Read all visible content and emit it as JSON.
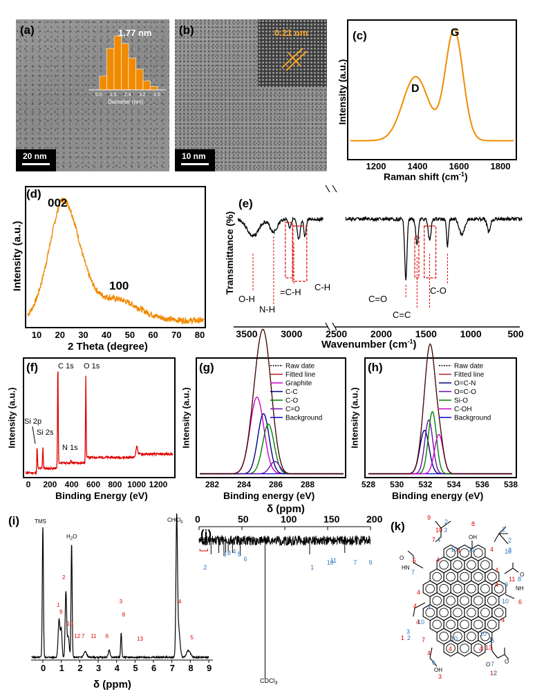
{
  "panels": {
    "a": {
      "label": "(a)",
      "size_label": "1.77 nm",
      "scale": "20 nm",
      "xlabel": "Diameter (nm)",
      "ticks": [
        "0.8",
        "1.6",
        "2.4",
        "3.2",
        "4.0"
      ]
    },
    "b": {
      "label": "(b)",
      "lattice": "0.21 nm",
      "scale": "10 nm"
    },
    "c": {
      "label": "(c)",
      "peak_d": "D",
      "peak_g": "G",
      "ylabel": "Intensity (a.u.)",
      "xlabel_main": "Raman shift (cm",
      "xlabel_sup": "-1",
      "xlabel_end": ")",
      "ticks": [
        "1200",
        "1400",
        "1600",
        "1800"
      ]
    },
    "d": {
      "label": "(d)",
      "peak1": "002",
      "peak2": "100",
      "ylabel": "Intensity (a.u.)",
      "xlabel": "2 Theta (degree)",
      "ticks": [
        "10",
        "20",
        "30",
        "40",
        "50",
        "60",
        "70",
        "80"
      ]
    },
    "e": {
      "label": "(e)",
      "ylabel": "Transmittance (%)",
      "xlabel_main": "Wavenumber (cm",
      "xlabel_sup": "-1",
      "xlabel_end": ")",
      "ticks": [
        "3500",
        "3000",
        "2500",
        "2000",
        "1500",
        "1000",
        "500"
      ],
      "ann": [
        "O-H",
        "N-H",
        "=C-H",
        "C-H",
        "C=O",
        "C=C",
        "C-O"
      ]
    },
    "f": {
      "label": "(f)",
      "ylabel": "Intensity (a.u.)",
      "xlabel": "Binding Energy (eV)",
      "ticks": [
        "0",
        "200",
        "400",
        "600",
        "800",
        "1000",
        "1200"
      ],
      "peaks": [
        "C 1s",
        "O 1s",
        "Si 2p",
        "Si 2s",
        "N 1s"
      ]
    },
    "g": {
      "label": "(g)",
      "ylabel": "Intensity (a.u.)",
      "xlabel": "Binding energy (eV)",
      "ticks": [
        "282",
        "284",
        "286",
        "288"
      ],
      "legend": [
        "Raw date",
        "Fitted line",
        "Graphite",
        "C-C",
        "C-O",
        "C=O",
        "Background"
      ]
    },
    "h": {
      "label": "(h)",
      "ylabel": "Intensity (a.u.)",
      "xlabel": "Binding energy (eV)",
      "ticks": [
        "528",
        "530",
        "532",
        "534",
        "536",
        "538"
      ],
      "legend": [
        "Raw date",
        "Fitted line",
        "O=C-N",
        "O=C-O",
        "Si-O",
        "C-OH",
        "Background"
      ]
    },
    "i": {
      "label": "(i)",
      "tms": "TMS",
      "h2o": "H",
      "h2o_sub": "2",
      "h2o_end": "O",
      "chcl": "CHCl",
      "chcl_sub": "3",
      "xlabel": "δ (ppm)",
      "ticks": [
        "0",
        "1",
        "2",
        "3",
        "4",
        "5",
        "6",
        "7",
        "8",
        "9"
      ],
      "nums": [
        "1",
        "9",
        "2",
        "10",
        "12",
        "7",
        "11",
        "6",
        "3",
        "8",
        "13",
        "4",
        "5"
      ]
    },
    "j": {
      "label": "(j)",
      "ticks": [
        "0",
        "50",
        "100",
        "150",
        "200"
      ],
      "cdcl": "CDCl",
      "cdcl_sub": "3",
      "title": "δ (ppm)",
      "nums": [
        "2",
        "3",
        "8",
        "4",
        "5",
        "6",
        "1",
        "10",
        "11",
        "7",
        "9"
      ]
    },
    "k": {
      "label": "(k)"
    }
  },
  "colors": {
    "orange": "#F08A00",
    "red": "#E00000",
    "blue": "#2E75B6",
    "black": "#000000"
  }
}
